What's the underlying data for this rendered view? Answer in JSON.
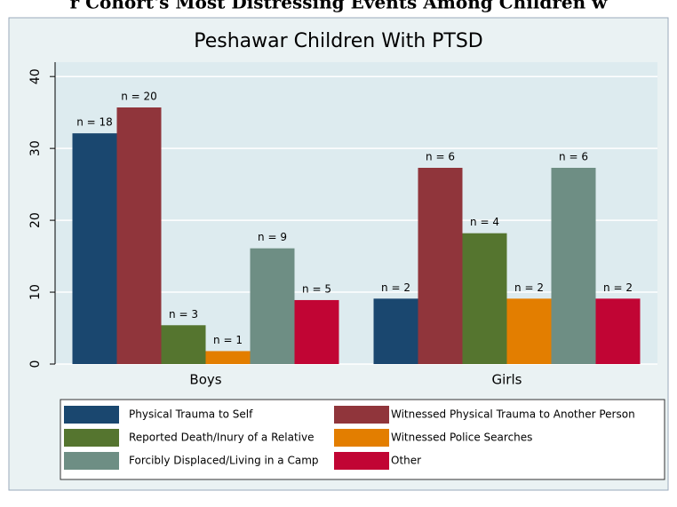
{
  "header": "r Cohort's Most Distressing Events Among Children w",
  "chart_data": {
    "type": "bar",
    "title": "Peshawar Children With PTSD",
    "categories": [
      "Boys",
      "Girls"
    ],
    "series": [
      {
        "name": "Physical Trauma to Self",
        "color": "#1a476f",
        "values": [
          32.1,
          9.1
        ],
        "value_labels": [
          "n = 18",
          "n = 2"
        ]
      },
      {
        "name": "Witnessed Physical Trauma to Another Person",
        "color": "#90353b",
        "values": [
          35.7,
          27.3
        ],
        "value_labels": [
          "n = 20",
          "n = 6"
        ]
      },
      {
        "name": "Reported Death/Inury of a Relative",
        "color": "#55752f",
        "values": [
          5.4,
          18.2
        ],
        "value_labels": [
          "n = 3",
          "n = 4"
        ]
      },
      {
        "name": "Witnessed Police Searches",
        "color": "#e37e00",
        "values": [
          1.8,
          9.1
        ],
        "value_labels": [
          "n = 1",
          "n = 2"
        ]
      },
      {
        "name": "Forcibly Displaced/Living in a Camp",
        "color": "#6e8e84",
        "values": [
          16.1,
          27.3
        ],
        "value_labels": [
          "n = 9",
          "n = 6"
        ]
      },
      {
        "name": "Other",
        "color": "#c10534",
        "values": [
          8.9,
          9.1
        ],
        "value_labels": [
          "n = 5",
          "n = 2"
        ]
      }
    ],
    "ylim": [
      0,
      42
    ],
    "yticks": [
      0,
      10,
      20,
      30,
      40
    ],
    "grid": true
  }
}
